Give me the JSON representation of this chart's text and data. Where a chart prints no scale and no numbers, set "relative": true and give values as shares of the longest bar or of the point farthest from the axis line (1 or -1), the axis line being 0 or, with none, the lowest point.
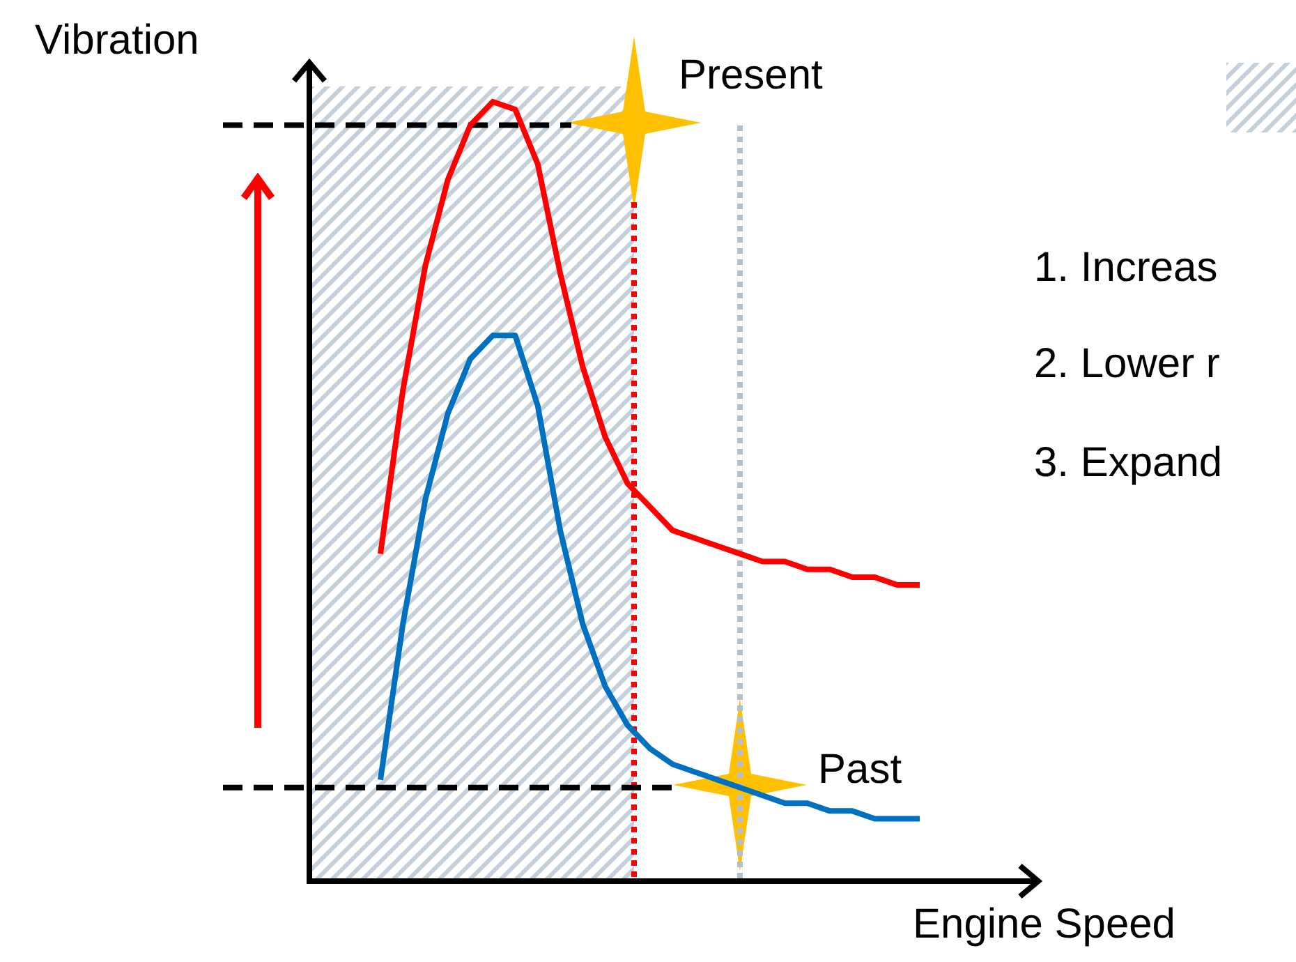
{
  "chart_data": {
    "type": "line",
    "relative": true,
    "xlabel": "Engine Speed",
    "ylabel": "Vibration",
    "legend": false,
    "marker": "none",
    "line_style": "solid",
    "categories": [
      null,
      null,
      null,
      null,
      null,
      null,
      null,
      null,
      null,
      null,
      null,
      null,
      null,
      null,
      null,
      null,
      null,
      null,
      null,
      null,
      null,
      null,
      null,
      null,
      null
    ],
    "series": [
      {
        "color": "#ff0000",
        "values": [
          0.42,
          0.63,
          0.79,
          0.9,
          0.97,
          1.0,
          0.99,
          0.92,
          0.78,
          0.66,
          0.57,
          0.51,
          0.48,
          0.45,
          0.44,
          0.43,
          0.42,
          0.41,
          0.41,
          0.4,
          0.4,
          0.39,
          0.39,
          0.38,
          0.38
        ]
      },
      {
        "color": "#0070c0",
        "values": [
          0.13,
          0.33,
          0.49,
          0.6,
          0.67,
          0.7,
          0.7,
          0.61,
          0.45,
          0.33,
          0.25,
          0.2,
          0.17,
          0.15,
          0.14,
          0.13,
          0.12,
          0.11,
          0.1,
          0.1,
          0.09,
          0.09,
          0.08,
          0.08,
          0.08
        ]
      }
    ],
    "ref_lines": [
      {
        "axis": "y",
        "value": 0.97,
        "color": "#000000",
        "line_style": "dashed"
      },
      {
        "axis": "y",
        "value": 0.12,
        "color": "#000000",
        "line_style": "dashed"
      }
    ],
    "annotations": [
      "Present",
      "Past",
      "1. Increas",
      "2. Lower r",
      "3. Expand"
    ]
  }
}
